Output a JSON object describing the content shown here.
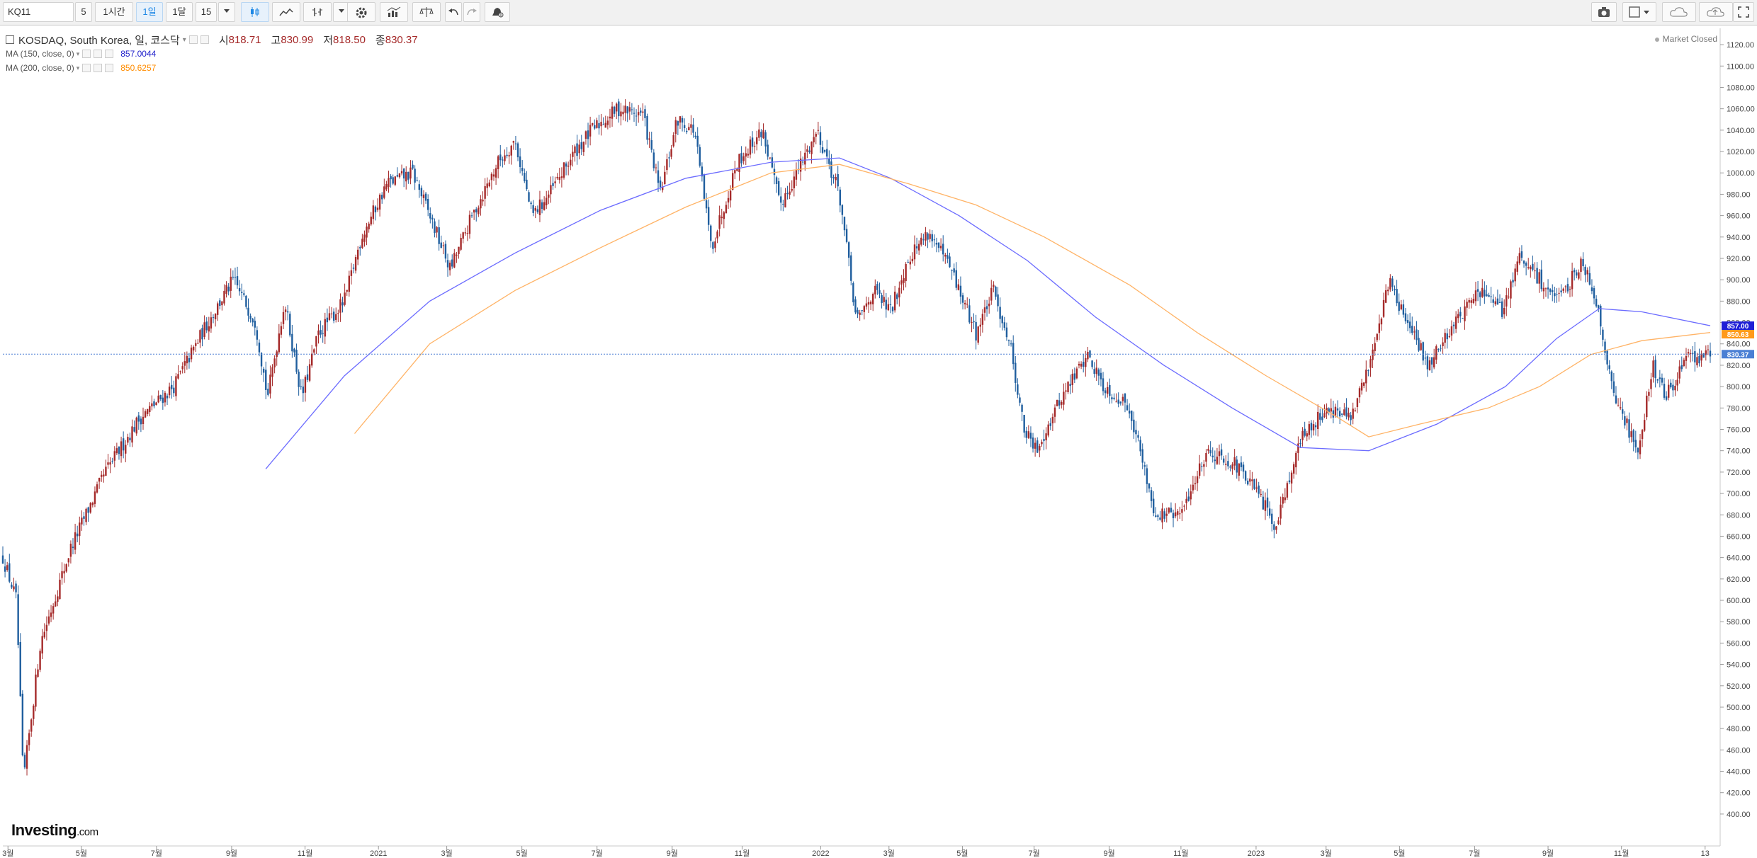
{
  "toolbar": {
    "symbol": "KQ11",
    "items": [
      "5",
      "1시간",
      "1일",
      "1달",
      "15"
    ]
  },
  "legend": {
    "title": "KOSDAQ, South Korea, 일, 코스닥",
    "open_label": "시",
    "open": "818.71",
    "high_label": "고",
    "high": "830.99",
    "low_label": "저",
    "low": "818.50",
    "close_label": "종",
    "close": "830.37",
    "ma150_label": "MA (150, close, 0)",
    "ma150_value": "857.0044",
    "ma200_label": "MA (200, close, 0)",
    "ma200_value": "850.6257"
  },
  "market_status": "Market Closed",
  "logo": {
    "main": "Investing",
    "suffix": ".com"
  },
  "icons": [
    "candlestick-icon",
    "line-chart-icon",
    "bar-type-icon",
    "gear-icon",
    "indicator-icon",
    "compare-icon",
    "undo-icon",
    "redo-icon",
    "alert-icon",
    "camera-icon",
    "layout-icon",
    "cloud-save-icon",
    "cloud-load-icon",
    "fullscreen-icon"
  ],
  "colors": {
    "up": "#a52a2a",
    "down": "#1f5e9e",
    "ma150": "#6b6bff",
    "ma200": "#ffb366",
    "last": "#4a7fd4",
    "ma150_tag": "#1f1fd6",
    "ma200_tag": "#ff9a1a"
  },
  "chart_data": {
    "type": "candlestick",
    "ylim": [
      390,
      1130
    ],
    "y_ticks": [
      400,
      420,
      440,
      460,
      480,
      500,
      520,
      540,
      560,
      580,
      600,
      620,
      640,
      660,
      680,
      700,
      720,
      740,
      760,
      780,
      800,
      820,
      840,
      860,
      880,
      900,
      920,
      940,
      960,
      980,
      1000,
      1020,
      1040,
      1060,
      1080,
      1100,
      1120
    ],
    "x_labels": [
      "3월",
      "5월",
      "7월",
      "9월",
      "11월",
      "2021",
      "3월",
      "5월",
      "7월",
      "9월",
      "11월",
      "2022",
      "3월",
      "5월",
      "7월",
      "9월",
      "11월",
      "2023",
      "3월",
      "5월",
      "7월",
      "9월",
      "11월",
      "13"
    ],
    "last_close": 830.37,
    "price_tags": [
      {
        "label": "857.00",
        "value": 857.0,
        "series": "ma150"
      },
      {
        "label": "850.63",
        "value": 850.63,
        "series": "ma200"
      },
      {
        "label": "830.37",
        "value": 830.37,
        "series": "last"
      }
    ],
    "close_path": [
      {
        "x": 0,
        "v": 640
      },
      {
        "x": 0.008,
        "v": 600
      },
      {
        "x": 0.012,
        "v": 430
      },
      {
        "x": 0.022,
        "v": 560
      },
      {
        "x": 0.04,
        "v": 650
      },
      {
        "x": 0.06,
        "v": 720
      },
      {
        "x": 0.08,
        "v": 770
      },
      {
        "x": 0.1,
        "v": 800
      },
      {
        "x": 0.12,
        "v": 860
      },
      {
        "x": 0.135,
        "v": 900
      },
      {
        "x": 0.148,
        "v": 860
      },
      {
        "x": 0.155,
        "v": 790
      },
      {
        "x": 0.165,
        "v": 880
      },
      {
        "x": 0.175,
        "v": 790
      },
      {
        "x": 0.185,
        "v": 850
      },
      {
        "x": 0.2,
        "v": 880
      },
      {
        "x": 0.21,
        "v": 940
      },
      {
        "x": 0.225,
        "v": 990
      },
      {
        "x": 0.24,
        "v": 1000
      },
      {
        "x": 0.25,
        "v": 960
      },
      {
        "x": 0.262,
        "v": 910
      },
      {
        "x": 0.275,
        "v": 960
      },
      {
        "x": 0.29,
        "v": 1010
      },
      {
        "x": 0.3,
        "v": 1030
      },
      {
        "x": 0.31,
        "v": 960
      },
      {
        "x": 0.32,
        "v": 980
      },
      {
        "x": 0.335,
        "v": 1020
      },
      {
        "x": 0.345,
        "v": 1040
      },
      {
        "x": 0.36,
        "v": 1060
      },
      {
        "x": 0.375,
        "v": 1055
      },
      {
        "x": 0.385,
        "v": 980
      },
      {
        "x": 0.395,
        "v": 1050
      },
      {
        "x": 0.405,
        "v": 1040
      },
      {
        "x": 0.415,
        "v": 930
      },
      {
        "x": 0.43,
        "v": 1010
      },
      {
        "x": 0.445,
        "v": 1040
      },
      {
        "x": 0.455,
        "v": 970
      },
      {
        "x": 0.465,
        "v": 1000
      },
      {
        "x": 0.477,
        "v": 1040
      },
      {
        "x": 0.49,
        "v": 980
      },
      {
        "x": 0.5,
        "v": 860
      },
      {
        "x": 0.51,
        "v": 890
      },
      {
        "x": 0.52,
        "v": 870
      },
      {
        "x": 0.53,
        "v": 920
      },
      {
        "x": 0.542,
        "v": 945
      },
      {
        "x": 0.555,
        "v": 910
      },
      {
        "x": 0.57,
        "v": 850
      },
      {
        "x": 0.58,
        "v": 890
      },
      {
        "x": 0.59,
        "v": 840
      },
      {
        "x": 0.598,
        "v": 760
      },
      {
        "x": 0.605,
        "v": 740
      },
      {
        "x": 0.62,
        "v": 790
      },
      {
        "x": 0.635,
        "v": 830
      },
      {
        "x": 0.645,
        "v": 800
      },
      {
        "x": 0.66,
        "v": 780
      },
      {
        "x": 0.675,
        "v": 680
      },
      {
        "x": 0.69,
        "v": 680
      },
      {
        "x": 0.705,
        "v": 740
      },
      {
        "x": 0.72,
        "v": 730
      },
      {
        "x": 0.735,
        "v": 700
      },
      {
        "x": 0.745,
        "v": 670
      },
      {
        "x": 0.76,
        "v": 750
      },
      {
        "x": 0.775,
        "v": 780
      },
      {
        "x": 0.79,
        "v": 770
      },
      {
        "x": 0.8,
        "v": 820
      },
      {
        "x": 0.812,
        "v": 900
      },
      {
        "x": 0.822,
        "v": 860
      },
      {
        "x": 0.835,
        "v": 820
      },
      {
        "x": 0.85,
        "v": 860
      },
      {
        "x": 0.865,
        "v": 890
      },
      {
        "x": 0.878,
        "v": 870
      },
      {
        "x": 0.888,
        "v": 920
      },
      {
        "x": 0.9,
        "v": 900
      },
      {
        "x": 0.912,
        "v": 880
      },
      {
        "x": 0.925,
        "v": 920
      },
      {
        "x": 0.935,
        "v": 870
      },
      {
        "x": 0.942,
        "v": 800
      },
      {
        "x": 0.952,
        "v": 760
      },
      {
        "x": 0.958,
        "v": 740
      },
      {
        "x": 0.966,
        "v": 820
      },
      {
        "x": 0.974,
        "v": 790
      },
      {
        "x": 0.985,
        "v": 825
      },
      {
        "x": 1.0,
        "v": 830
      }
    ],
    "ma150_path": [
      {
        "x": 0.154,
        "v": 723
      },
      {
        "x": 0.2,
        "v": 810
      },
      {
        "x": 0.25,
        "v": 880
      },
      {
        "x": 0.3,
        "v": 925
      },
      {
        "x": 0.35,
        "v": 965
      },
      {
        "x": 0.4,
        "v": 995
      },
      {
        "x": 0.45,
        "v": 1010
      },
      {
        "x": 0.49,
        "v": 1014
      },
      {
        "x": 0.52,
        "v": 995
      },
      {
        "x": 0.56,
        "v": 960
      },
      {
        "x": 0.6,
        "v": 918
      },
      {
        "x": 0.64,
        "v": 865
      },
      {
        "x": 0.68,
        "v": 820
      },
      {
        "x": 0.72,
        "v": 780
      },
      {
        "x": 0.76,
        "v": 743
      },
      {
        "x": 0.8,
        "v": 740
      },
      {
        "x": 0.84,
        "v": 765
      },
      {
        "x": 0.88,
        "v": 800
      },
      {
        "x": 0.91,
        "v": 845
      },
      {
        "x": 0.935,
        "v": 873
      },
      {
        "x": 0.96,
        "v": 870
      },
      {
        "x": 1.0,
        "v": 857
      }
    ],
    "ma200_path": [
      {
        "x": 0.206,
        "v": 756
      },
      {
        "x": 0.25,
        "v": 840
      },
      {
        "x": 0.3,
        "v": 890
      },
      {
        "x": 0.35,
        "v": 930
      },
      {
        "x": 0.4,
        "v": 968
      },
      {
        "x": 0.45,
        "v": 1000
      },
      {
        "x": 0.49,
        "v": 1008
      },
      {
        "x": 0.53,
        "v": 990
      },
      {
        "x": 0.57,
        "v": 970
      },
      {
        "x": 0.61,
        "v": 940
      },
      {
        "x": 0.66,
        "v": 895
      },
      {
        "x": 0.7,
        "v": 850
      },
      {
        "x": 0.74,
        "v": 810
      },
      {
        "x": 0.78,
        "v": 773
      },
      {
        "x": 0.8,
        "v": 753
      },
      {
        "x": 0.83,
        "v": 765
      },
      {
        "x": 0.87,
        "v": 780
      },
      {
        "x": 0.9,
        "v": 800
      },
      {
        "x": 0.93,
        "v": 830
      },
      {
        "x": 0.96,
        "v": 843
      },
      {
        "x": 1.0,
        "v": 850.63
      }
    ]
  }
}
